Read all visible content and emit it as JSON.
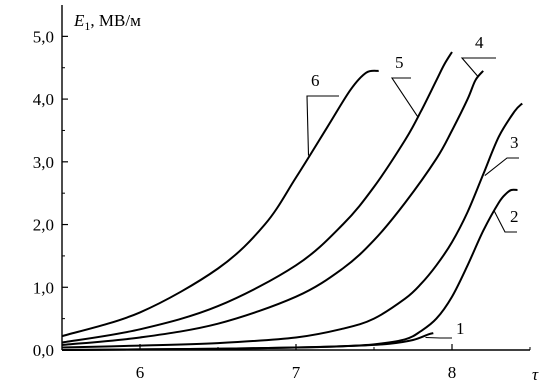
{
  "chart_data": {
    "type": "line",
    "ylabel_symbol": "E",
    "ylabel_subscript": "1",
    "ylabel_unit": ", МВ/м",
    "xlabel": "τ",
    "xlim": [
      5.5,
      8.5
    ],
    "ylim": [
      0,
      5.5
    ],
    "xticks": [
      {
        "value": 6,
        "label": "6"
      },
      {
        "value": 7,
        "label": "7"
      },
      {
        "value": 8,
        "label": "8"
      }
    ],
    "yticks": [
      {
        "value": 0,
        "label": "0,0"
      },
      {
        "value": 1,
        "label": "1,0"
      },
      {
        "value": 2,
        "label": "2,0"
      },
      {
        "value": 3,
        "label": "3,0"
      },
      {
        "value": 4,
        "label": "4,0"
      },
      {
        "value": 5,
        "label": "5,0"
      }
    ],
    "series": [
      {
        "name": "1",
        "x": [
          5.5,
          6.0,
          6.5,
          7.0,
          7.4,
          7.6,
          7.75,
          7.85,
          7.88
        ],
        "y": [
          0.0,
          0.01,
          0.02,
          0.04,
          0.07,
          0.1,
          0.16,
          0.25,
          0.27
        ]
      },
      {
        "name": "2",
        "x": [
          5.5,
          6.0,
          6.5,
          7.0,
          7.3,
          7.5,
          7.7,
          7.8,
          7.9,
          8.0,
          8.1,
          8.2,
          8.3,
          8.35,
          8.38,
          8.42
        ],
        "y": [
          0.0,
          0.01,
          0.02,
          0.04,
          0.06,
          0.09,
          0.17,
          0.3,
          0.5,
          0.85,
          1.35,
          1.9,
          2.35,
          2.5,
          2.55,
          2.55
        ]
      },
      {
        "name": "3",
        "x": [
          5.5,
          6.0,
          6.5,
          7.0,
          7.3,
          7.5,
          7.7,
          7.8,
          7.9,
          8.0,
          8.1,
          8.2,
          8.3,
          8.4,
          8.45
        ],
        "y": [
          0.04,
          0.07,
          0.11,
          0.2,
          0.34,
          0.5,
          0.82,
          1.05,
          1.35,
          1.72,
          2.2,
          2.8,
          3.4,
          3.8,
          3.93
        ]
      },
      {
        "name": "4",
        "x": [
          5.5,
          6.0,
          6.5,
          7.0,
          7.3,
          7.5,
          7.7,
          7.9,
          8.0,
          8.1,
          8.15,
          8.2
        ],
        "y": [
          0.08,
          0.2,
          0.42,
          0.85,
          1.3,
          1.75,
          2.35,
          3.05,
          3.5,
          4.0,
          4.3,
          4.45
        ]
      },
      {
        "name": "5",
        "x": [
          5.5,
          6.0,
          6.5,
          7.0,
          7.3,
          7.5,
          7.7,
          7.8,
          7.9,
          7.95,
          8.0
        ],
        "y": [
          0.12,
          0.33,
          0.7,
          1.35,
          2.0,
          2.6,
          3.35,
          3.8,
          4.3,
          4.55,
          4.75
        ]
      },
      {
        "name": "6",
        "x": [
          5.5,
          6.0,
          6.5,
          6.8,
          7.0,
          7.2,
          7.35,
          7.45,
          7.53
        ],
        "y": [
          0.22,
          0.6,
          1.3,
          2.0,
          2.75,
          3.55,
          4.15,
          4.42,
          4.45
        ]
      }
    ]
  }
}
